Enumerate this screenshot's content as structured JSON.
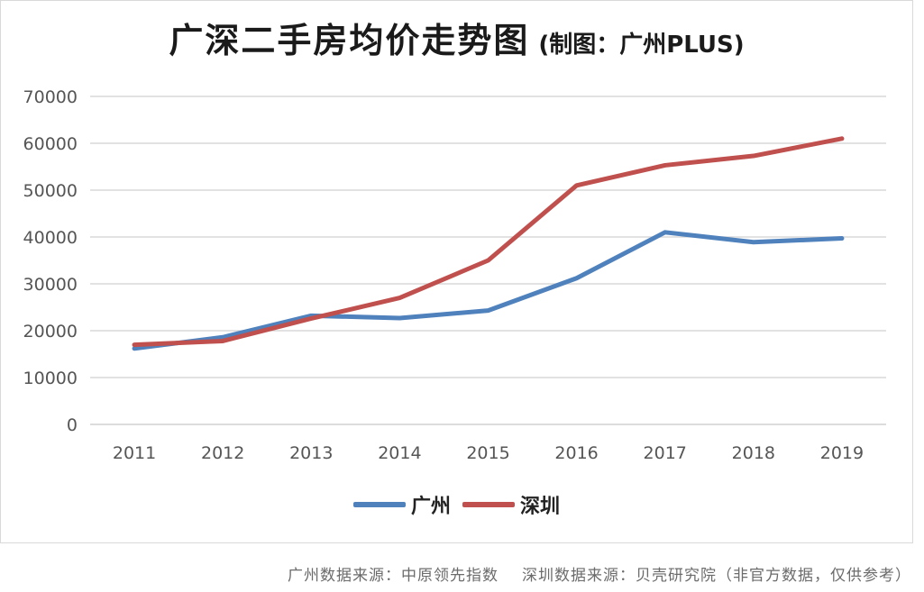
{
  "chart_data": {
    "type": "line",
    "title": "广深二手房均价走势图",
    "subtitle": "(制图：广州PLUS)",
    "categories": [
      "2011",
      "2012",
      "2013",
      "2014",
      "2015",
      "2016",
      "2017",
      "2018",
      "2019"
    ],
    "series": [
      {
        "name": "广州",
        "color": "#4f81bd",
        "values": [
          16200,
          18600,
          23200,
          22700,
          24300,
          31200,
          41000,
          38900,
          39700
        ]
      },
      {
        "name": "深圳",
        "color": "#c0504d",
        "values": [
          17000,
          17800,
          22600,
          27000,
          35000,
          51000,
          55300,
          57300,
          61000
        ]
      }
    ],
    "yticks": [
      "0",
      "10000",
      "20000",
      "30000",
      "40000",
      "50000",
      "60000",
      "70000"
    ],
    "ylim": [
      0,
      70000
    ],
    "grid": true,
    "legend_position": "bottom",
    "xlabel": "",
    "ylabel": ""
  },
  "footer": {
    "source_gz": "广州数据来源：中原领先指数",
    "source_sz": "深圳数据来源：贝壳研究院（非官方数据，仅供参考）"
  }
}
